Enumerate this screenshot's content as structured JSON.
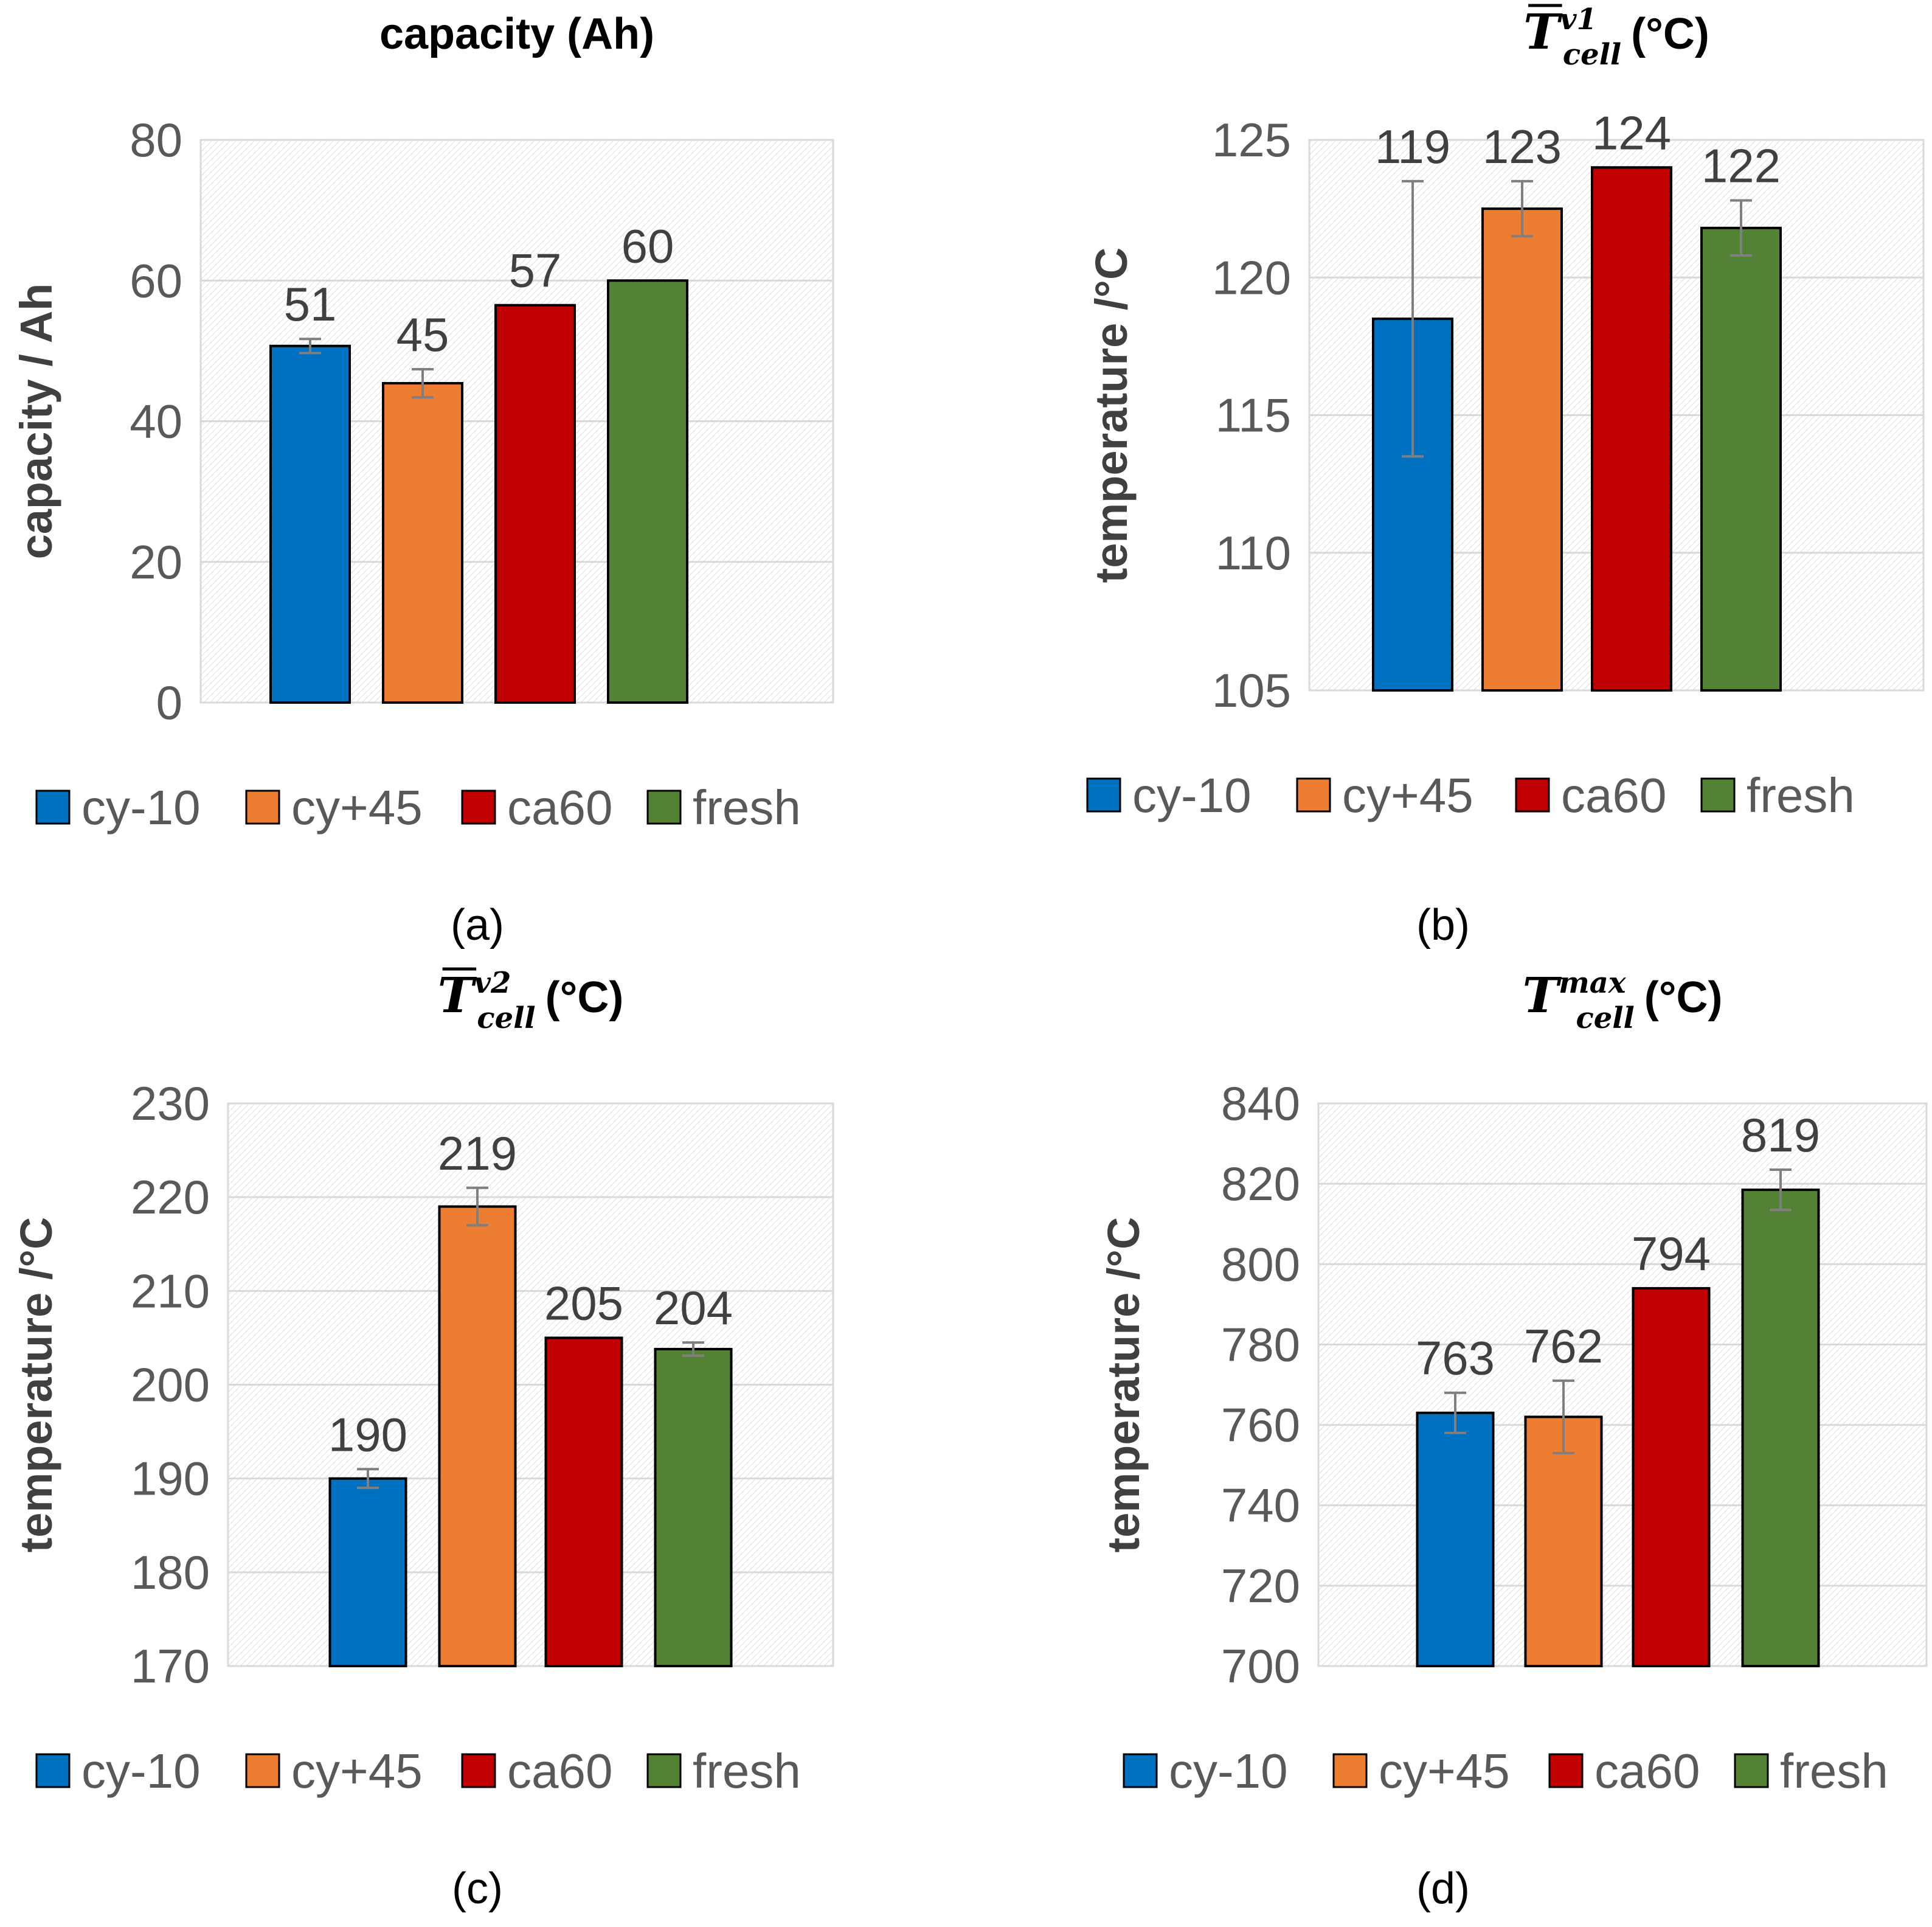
{
  "colors": {
    "cy-10": "#0070C0",
    "cy+45": "#ED7D31",
    "ca60": "#C00000",
    "fresh": "#548235",
    "error_bar": "#7F7F7F",
    "grid": "#D9D9D9"
  },
  "chart_data": [
    {
      "type": "bar",
      "title": "capacity (Ah)",
      "ylabel": "capacity / Ah",
      "xlabel": "",
      "caption": "(a)",
      "categories": [
        "cy-10",
        "cy+45",
        "ca60",
        "fresh"
      ],
      "values": [
        51,
        45,
        57,
        60
      ],
      "plot_values": [
        50.7,
        45.4,
        56.5,
        60.0
      ],
      "errors": [
        1.0,
        2.0,
        0,
        0
      ],
      "data_labels": [
        "51",
        "45",
        "57",
        "60"
      ],
      "ylim": [
        0,
        80
      ],
      "yticks": [
        0,
        20,
        40,
        60,
        80
      ],
      "grid": true,
      "legend_position": "bottom"
    },
    {
      "type": "bar",
      "title_main": "T",
      "title_sup": "v1",
      "title_sub": "cell",
      "title_unit": "(°C)",
      "ylabel": "temperature /°C",
      "xlabel": "",
      "caption": "(b)",
      "categories": [
        "cy-10",
        "cy+45",
        "ca60",
        "fresh"
      ],
      "values": [
        119,
        123,
        124,
        122
      ],
      "plot_values": [
        118.5,
        122.5,
        124.0,
        121.8
      ],
      "errors": [
        5.0,
        1.0,
        0,
        1.0
      ],
      "data_labels": [
        "119",
        "123",
        "124",
        "122"
      ],
      "ylim": [
        105,
        125
      ],
      "yticks": [
        105,
        110,
        115,
        120,
        125
      ],
      "grid": true,
      "legend_position": "bottom"
    },
    {
      "type": "bar",
      "title_main": "T",
      "title_sup": "v2",
      "title_sub": "cell",
      "title_unit": "(°C)",
      "ylabel": "temperature /°C",
      "xlabel": "",
      "caption": "(c)",
      "categories": [
        "cy-10",
        "cy+45",
        "ca60",
        "fresh"
      ],
      "values": [
        190,
        219,
        205,
        204
      ],
      "plot_values": [
        190.0,
        219.0,
        205.0,
        203.8
      ],
      "errors": [
        1.0,
        2.0,
        0,
        0.7
      ],
      "data_labels": [
        "190",
        "219",
        "205",
        "204"
      ],
      "ylim": [
        170,
        230
      ],
      "yticks": [
        170,
        180,
        190,
        200,
        210,
        220,
        230
      ],
      "grid": true,
      "legend_position": "bottom"
    },
    {
      "type": "bar",
      "title_main": "T",
      "title_sup": "max",
      "title_sub": "cell",
      "title_unit": "(°C)",
      "ylabel": "temperature /°C",
      "xlabel": "",
      "caption": "(d)",
      "categories": [
        "cy-10",
        "cy+45",
        "ca60",
        "fresh"
      ],
      "values": [
        763,
        762,
        794,
        819
      ],
      "plot_values": [
        763.0,
        762.0,
        794.0,
        818.5
      ],
      "errors": [
        5.0,
        9.0,
        0,
        5.0
      ],
      "data_labels": [
        "763",
        "762",
        "794",
        "819"
      ],
      "ylim": [
        700,
        840
      ],
      "yticks": [
        700,
        720,
        740,
        760,
        780,
        800,
        820,
        840
      ],
      "grid": true,
      "legend_position": "bottom"
    }
  ]
}
